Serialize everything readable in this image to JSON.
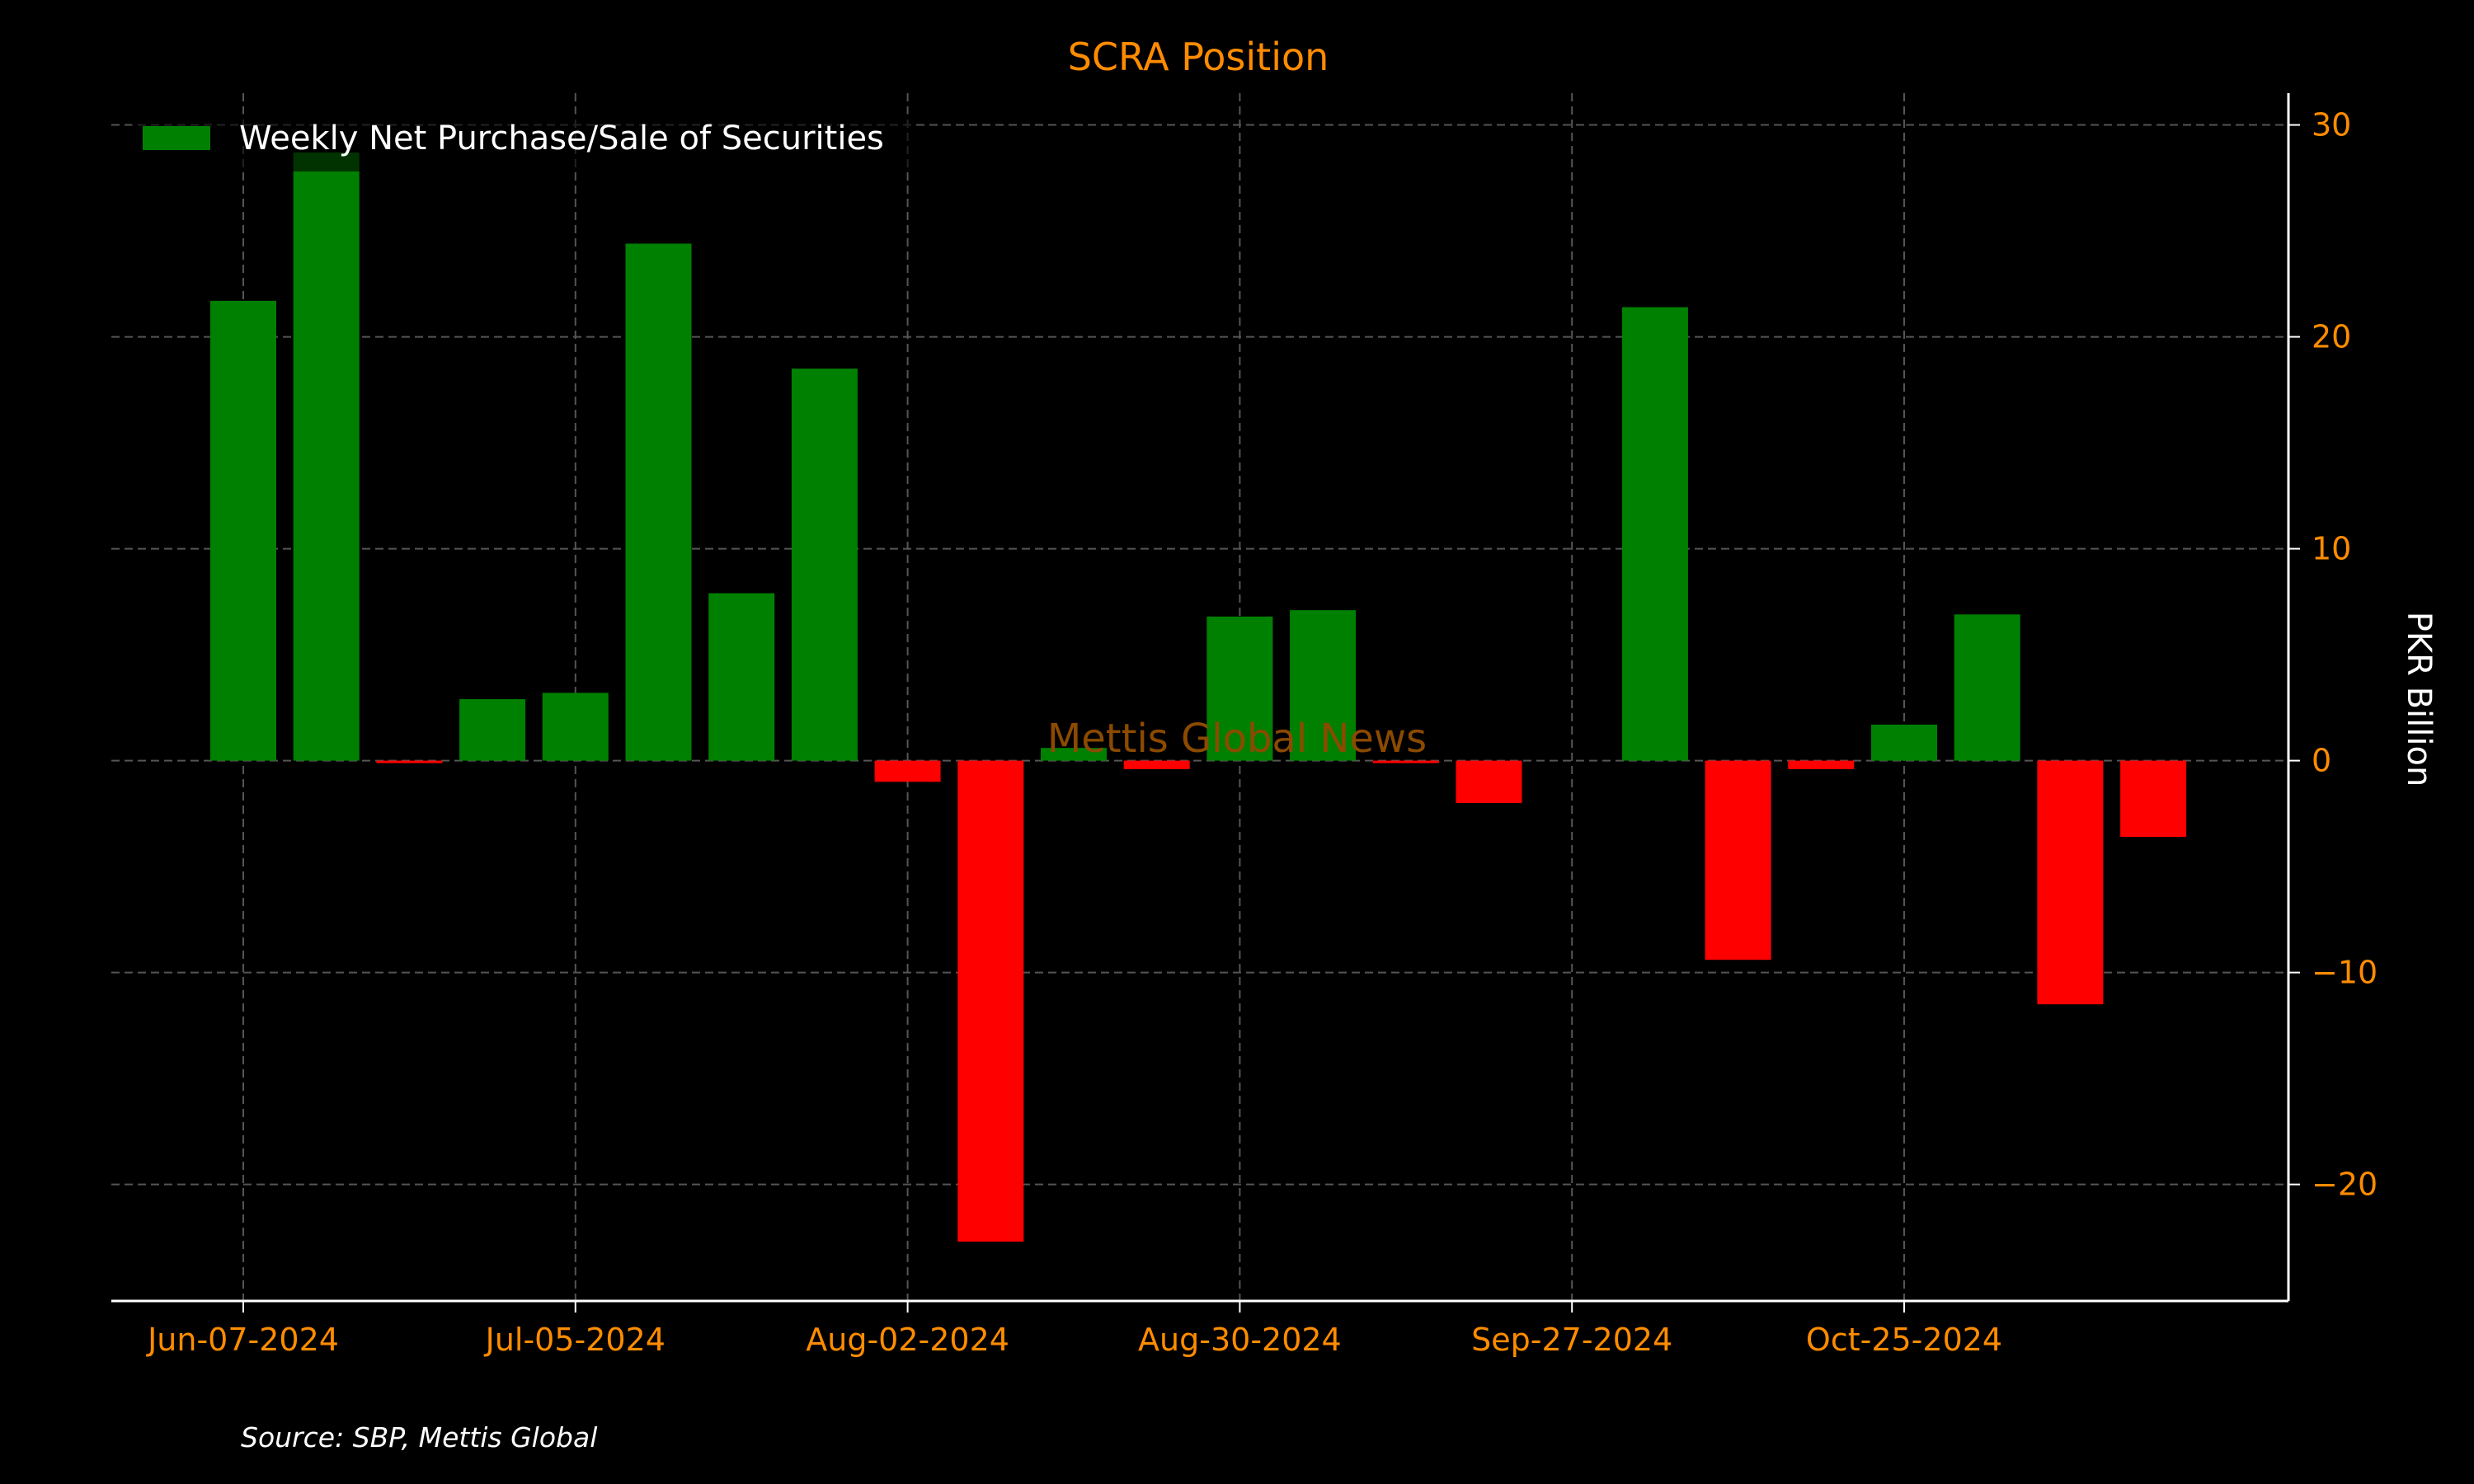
{
  "colors": {
    "background": "#000000",
    "accent": "#ff8c00",
    "positive": "#008000",
    "negative": "#ff0000",
    "axis": "#ffffff",
    "grid": "#555555",
    "watermark": "#8b4a00"
  },
  "watermark": "Mettis Global News",
  "source": "Source: SBP, Mettis Global",
  "chart_data": {
    "type": "bar",
    "title": "SCRA Position",
    "xlabel": "",
    "ylabel": "PKR Billion",
    "y_axis_side": "right",
    "ylim": [
      -25.5,
      31.5
    ],
    "yticks": [
      -20,
      -10,
      0,
      10,
      20,
      30
    ],
    "ytick_labels": [
      "−20",
      "−10",
      "0",
      "10",
      "20",
      "30"
    ],
    "grid": true,
    "legend_position": "top-left",
    "xtick_labels": [
      "Jun-07-2024",
      "Jul-05-2024",
      "Aug-02-2024",
      "Aug-30-2024",
      "Sep-27-2024",
      "Oct-25-2024"
    ],
    "series": [
      {
        "name": "Weekly Net Purchase/Sale of Securities",
        "color_positive": "#008000",
        "color_negative": "#ff0000",
        "categories": [
          "2024-06-07",
          "2024-06-14",
          "2024-06-21",
          "2024-06-28",
          "2024-07-05",
          "2024-07-12",
          "2024-07-19",
          "2024-07-26",
          "2024-08-02",
          "2024-08-09",
          "2024-08-16",
          "2024-08-23",
          "2024-08-30",
          "2024-09-06",
          "2024-09-13",
          "2024-09-20",
          "2024-09-27",
          "2024-10-04",
          "2024-10-11",
          "2024-10-18",
          "2024-10-25",
          "2024-11-01",
          "2024-11-08",
          "2024-11-15"
        ],
        "values": [
          21.7,
          28.7,
          -0.1,
          2.9,
          3.2,
          24.4,
          7.9,
          18.5,
          -1.0,
          -22.7,
          0.6,
          -0.4,
          6.8,
          7.1,
          -0.1,
          -2.0,
          0.0,
          21.4,
          -9.4,
          -0.4,
          1.7,
          6.9,
          -11.5,
          -3.6
        ]
      }
    ]
  }
}
